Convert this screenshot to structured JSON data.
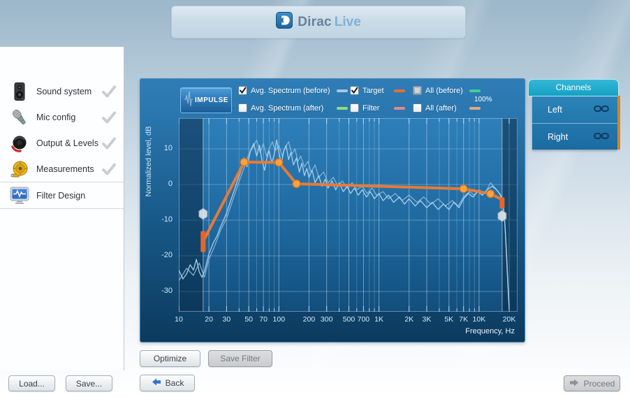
{
  "app": {
    "title_primary": "Dirac",
    "title_secondary": "Live"
  },
  "sidebar": {
    "items": [
      {
        "label": "Sound system",
        "icon": "speaker-icon",
        "completed": true,
        "active": false
      },
      {
        "label": "Mic config",
        "icon": "microphone-icon",
        "completed": true,
        "active": false
      },
      {
        "label": "Output & Levels",
        "icon": "knob-icon",
        "completed": true,
        "active": false
      },
      {
        "label": "Measurements",
        "icon": "tape-measure-icon",
        "completed": true,
        "active": false
      },
      {
        "label": "Filter Design",
        "icon": "filter-design-icon",
        "completed": false,
        "active": true
      }
    ]
  },
  "chart": {
    "impulse_button": "IMPULSE",
    "legend": {
      "items": [
        {
          "label": "Avg. Spectrum (before)",
          "checked": true,
          "enabled": true,
          "swatch": "#a9c7e3"
        },
        {
          "label": "Target",
          "checked": true,
          "enabled": true,
          "swatch": "#e2703a"
        },
        {
          "label": "All (before)",
          "checked": false,
          "enabled": false,
          "swatch": "#43d08d"
        },
        {
          "label": "Avg. Spectrum (after)",
          "checked": false,
          "enabled": true,
          "swatch": "#8ce07e"
        },
        {
          "label": "Filter",
          "checked": false,
          "enabled": true,
          "swatch": "#e08a8a"
        },
        {
          "label": "All (after)",
          "checked": false,
          "enabled": true,
          "swatch": "#ddab7c"
        }
      ],
      "all_before_note": "100%"
    },
    "ylabel": "Normalized level, dB",
    "xlabel": "Frequency, Hz",
    "yticks": [
      10,
      0,
      -10,
      -20,
      -30
    ],
    "xtick_labels": [
      {
        "f": 10,
        "t": "10"
      },
      {
        "f": 20,
        "t": "20"
      },
      {
        "f": 30,
        "t": "30"
      },
      {
        "f": 50,
        "t": "50"
      },
      {
        "f": 70,
        "t": "70"
      },
      {
        "f": 100,
        "t": "100"
      },
      {
        "f": 200,
        "t": "200"
      },
      {
        "f": 300,
        "t": "300"
      },
      {
        "f": 500,
        "t": "500"
      },
      {
        "f": 700,
        "t": "700"
      },
      {
        "f": 1000,
        "t": "1K"
      },
      {
        "f": 2000,
        "t": "2K"
      },
      {
        "f": 3000,
        "t": "3K"
      },
      {
        "f": 5000,
        "t": "5K"
      },
      {
        "f": 7000,
        "t": "7K"
      },
      {
        "f": 10000,
        "t": "10K"
      },
      {
        "f": 20000,
        "t": "20K"
      }
    ]
  },
  "chart_data": {
    "type": "line",
    "x_scale": "log",
    "x_range_hz": [
      10,
      20000
    ],
    "y_range_db": [
      -36,
      18
    ],
    "curtains_hz": {
      "left": 17.5,
      "right": 17000
    },
    "series": [
      {
        "name": "Avg. Spectrum (before) - Left",
        "color": "#aed0ea",
        "points": [
          [
            10,
            -24
          ],
          [
            11,
            -26.5
          ],
          [
            12,
            -25
          ],
          [
            13,
            -22.5
          ],
          [
            14,
            -24
          ],
          [
            15,
            -21
          ],
          [
            16,
            -24.5
          ],
          [
            17,
            -26
          ],
          [
            18,
            -24.5
          ],
          [
            19,
            -22
          ],
          [
            20,
            -19.5
          ],
          [
            22,
            -16.5
          ],
          [
            24,
            -14.5
          ],
          [
            26,
            -12
          ],
          [
            28,
            -10
          ],
          [
            30,
            -8
          ],
          [
            33,
            -4.5
          ],
          [
            36,
            -1.5
          ],
          [
            39,
            1.5
          ],
          [
            42,
            4
          ],
          [
            45,
            7.5
          ],
          [
            48,
            5
          ],
          [
            52,
            9.5
          ],
          [
            56,
            11.5
          ],
          [
            60,
            8
          ],
          [
            64,
            11
          ],
          [
            68,
            6.5
          ],
          [
            72,
            4
          ],
          [
            76,
            7.5
          ],
          [
            80,
            9.5
          ],
          [
            85,
            6
          ],
          [
            90,
            8.5
          ],
          [
            95,
            12.5
          ],
          [
            100,
            9
          ],
          [
            106,
            6
          ],
          [
            112,
            9.5
          ],
          [
            118,
            11
          ],
          [
            125,
            7
          ],
          [
            132,
            9
          ],
          [
            140,
            5.5
          ],
          [
            150,
            7.5
          ],
          [
            160,
            3.5
          ],
          [
            170,
            6
          ],
          [
            180,
            2.5
          ],
          [
            190,
            4.5
          ],
          [
            200,
            2
          ],
          [
            215,
            4
          ],
          [
            230,
            0.5
          ],
          [
            250,
            2.5
          ],
          [
            270,
            -0.5
          ],
          [
            290,
            1.5
          ],
          [
            310,
            -1
          ],
          [
            340,
            1
          ],
          [
            370,
            -1.5
          ],
          [
            400,
            0.5
          ],
          [
            440,
            -2
          ],
          [
            480,
            -0.5
          ],
          [
            520,
            -2.5
          ],
          [
            570,
            -1
          ],
          [
            620,
            -3
          ],
          [
            680,
            -1.5
          ],
          [
            750,
            -3.5
          ],
          [
            820,
            -2
          ],
          [
            900,
            -4
          ],
          [
            1000,
            -2.5
          ],
          [
            1100,
            -4.5
          ],
          [
            1250,
            -3
          ],
          [
            1400,
            -5
          ],
          [
            1600,
            -3.5
          ],
          [
            1800,
            -5.5
          ],
          [
            2000,
            -4
          ],
          [
            2300,
            -6
          ],
          [
            2600,
            -4.5
          ],
          [
            3000,
            -6.5
          ],
          [
            3400,
            -5
          ],
          [
            3900,
            -7
          ],
          [
            4400,
            -5.5
          ],
          [
            5000,
            -7
          ],
          [
            5600,
            -5
          ],
          [
            6300,
            -6.5
          ],
          [
            7000,
            -4
          ],
          [
            7800,
            -2.5
          ],
          [
            8700,
            -3.5
          ],
          [
            9700,
            -2
          ],
          [
            10800,
            -3
          ],
          [
            12000,
            -1.5
          ],
          [
            13500,
            -0.5
          ],
          [
            15000,
            -1.5
          ],
          [
            16500,
            -3
          ],
          [
            17500,
            -6
          ],
          [
            18200,
            -12
          ],
          [
            18800,
            -20
          ],
          [
            19400,
            -28
          ],
          [
            20000,
            -35
          ]
        ]
      },
      {
        "name": "Avg. Spectrum (before) - Right",
        "color": "#8abad9",
        "points": [
          [
            10,
            -27
          ],
          [
            12,
            -23.5
          ],
          [
            14,
            -25.5
          ],
          [
            16,
            -22
          ],
          [
            18,
            -26
          ],
          [
            20,
            -21
          ],
          [
            23,
            -17
          ],
          [
            26,
            -13
          ],
          [
            30,
            -9.5
          ],
          [
            34,
            -5
          ],
          [
            38,
            -1
          ],
          [
            42,
            2.5
          ],
          [
            46,
            5.5
          ],
          [
            50,
            8.5
          ],
          [
            55,
            10.5
          ],
          [
            60,
            12.5
          ],
          [
            65,
            9
          ],
          [
            70,
            11.5
          ],
          [
            75,
            8
          ],
          [
            80,
            10
          ],
          [
            86,
            12
          ],
          [
            92,
            9.5
          ],
          [
            100,
            11
          ],
          [
            108,
            8
          ],
          [
            116,
            10.5
          ],
          [
            125,
            12
          ],
          [
            135,
            8.5
          ],
          [
            145,
            10
          ],
          [
            155,
            6.5
          ],
          [
            165,
            8
          ],
          [
            180,
            5
          ],
          [
            195,
            6.5
          ],
          [
            210,
            3.5
          ],
          [
            230,
            5.5
          ],
          [
            250,
            2
          ],
          [
            280,
            3.5
          ],
          [
            310,
            0.5
          ],
          [
            350,
            2
          ],
          [
            390,
            -0.5
          ],
          [
            430,
            1
          ],
          [
            480,
            -1
          ],
          [
            540,
            0.5
          ],
          [
            600,
            -1.5
          ],
          [
            680,
            -0.5
          ],
          [
            760,
            -2.5
          ],
          [
            850,
            -1
          ],
          [
            950,
            -3
          ],
          [
            1100,
            -2
          ],
          [
            1250,
            -4
          ],
          [
            1450,
            -2.5
          ],
          [
            1700,
            -4.5
          ],
          [
            2000,
            -3
          ],
          [
            2400,
            -5
          ],
          [
            2800,
            -3.5
          ],
          [
            3300,
            -5.5
          ],
          [
            3900,
            -4
          ],
          [
            4600,
            -6
          ],
          [
            5400,
            -4.5
          ],
          [
            6200,
            -6
          ],
          [
            7000,
            -3.5
          ],
          [
            8000,
            -2
          ],
          [
            9000,
            -3
          ],
          [
            10000,
            -1.5
          ],
          [
            11500,
            -2.5
          ],
          [
            13000,
            0.5
          ],
          [
            14500,
            -1
          ],
          [
            16000,
            -2.5
          ],
          [
            17200,
            -5
          ],
          [
            18000,
            -10
          ],
          [
            18700,
            -18
          ],
          [
            19300,
            -26
          ],
          [
            20000,
            -34
          ]
        ]
      },
      {
        "name": "Target",
        "color": "#ed7b33",
        "points": [
          [
            17.5,
            -16
          ],
          [
            45,
            6.3
          ],
          [
            100,
            6.2
          ],
          [
            150,
            0.2
          ],
          [
            7000,
            -1.2
          ],
          [
            13000,
            -2.6
          ],
          [
            17000,
            -4.2
          ]
        ],
        "control_points": [
          [
            45,
            6.3
          ],
          [
            100,
            6.2
          ],
          [
            150,
            0.2
          ],
          [
            7000,
            -1.2
          ],
          [
            13000,
            -2.6
          ]
        ]
      }
    ]
  },
  "channels": {
    "title": "Channels",
    "items": [
      {
        "label": "Left"
      },
      {
        "label": "Right"
      }
    ],
    "accent_color": "#d9851c"
  },
  "actions": {
    "optimize": "Optimize",
    "save_filter": "Save Filter",
    "back": "Back",
    "proceed": "Proceed",
    "load": "Load...",
    "save": "Save..."
  }
}
